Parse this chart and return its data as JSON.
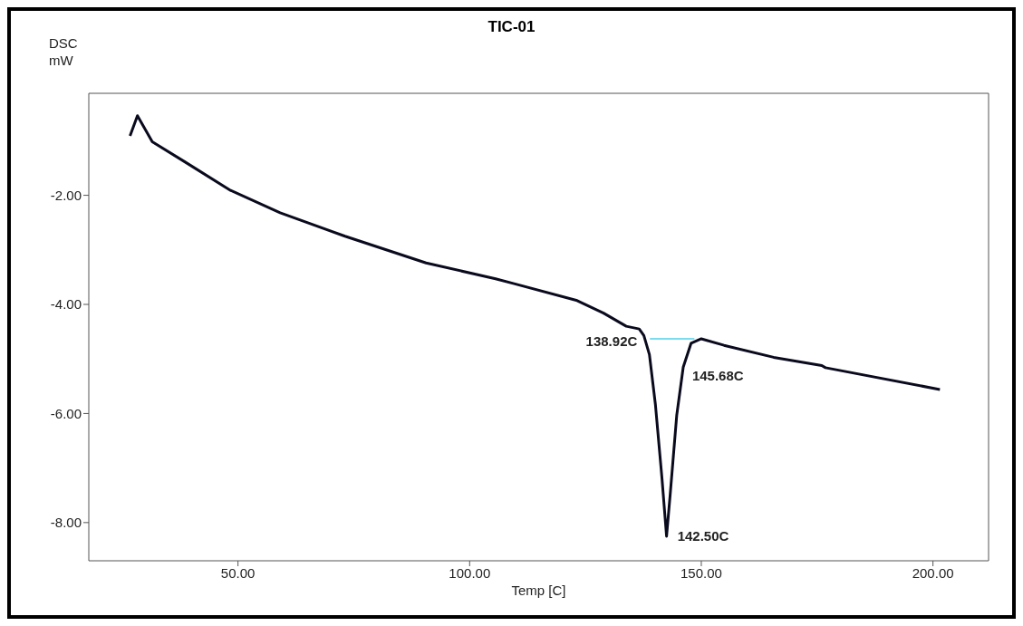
{
  "chart_data": {
    "type": "line",
    "title": "TIC-01",
    "xlabel": "Temp [C]",
    "ylabel": "DSC\nmW",
    "xlim": [
      17.8,
      212
    ],
    "ylim": [
      -8.7,
      -0.13
    ],
    "xticks": [
      {
        "value": 50,
        "label": "50.00"
      },
      {
        "value": 100,
        "label": "100.00"
      },
      {
        "value": 150,
        "label": "150.00"
      },
      {
        "value": 200,
        "label": "200.00"
      }
    ],
    "yticks": [
      {
        "value": -2,
        "label": "-2.00"
      },
      {
        "value": -4,
        "label": "-4.00"
      },
      {
        "value": -6,
        "label": "-6.00"
      },
      {
        "value": -8,
        "label": "-8.00"
      }
    ],
    "marker": "none",
    "line_style": "solid",
    "series": [
      {
        "color": "#0a0a1e",
        "x": [
          26.7,
          28.3,
          31.5,
          38.6,
          48.4,
          59.1,
          73.1,
          90.6,
          105.6,
          109.6,
          123.2,
          128.9,
          133.8,
          136.6,
          137.6,
          138.8,
          140.1,
          141.5,
          142.5,
          143.3,
          144.7,
          146.1,
          147.8,
          150,
          154.9,
          165.6,
          176,
          176.8,
          201.5
        ],
        "values": [
          -0.91,
          -0.54,
          -1.02,
          -1.39,
          -1.91,
          -2.32,
          -2.75,
          -3.24,
          -3.53,
          -3.62,
          -3.93,
          -4.16,
          -4.4,
          -4.45,
          -4.57,
          -4.92,
          -5.84,
          -7.18,
          -8.25,
          -7.47,
          -6.03,
          -5.15,
          -4.71,
          -4.63,
          -4.75,
          -4.97,
          -5.12,
          -5.16,
          -5.56
        ]
      },
      {
        "color": "#4fd0e8",
        "x": [
          138.9,
          148.5
        ],
        "values": [
          -4.63,
          -4.63
        ]
      }
    ],
    "annotations": [
      {
        "text": "138.92C",
        "x": 138.92,
        "y": -4.68
      },
      {
        "text": "145.68C",
        "x": 145.68,
        "y": -5.3
      },
      {
        "text": "142.50C",
        "x": 142.5,
        "y": -8.25
      }
    ]
  }
}
